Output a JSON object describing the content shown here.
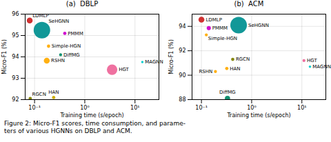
{
  "chart_data": [
    {
      "type": "scatter",
      "title": "(a)  DBLP",
      "labels": [
        "LDMLP",
        "SeHGNN",
        "PMMM",
        "Simple-HGN",
        "DiffMG",
        "RSHN",
        "HGT",
        "MAGNN",
        "RGCN",
        "HAN"
      ],
      "x": [
        0.08,
        0.14,
        0.4,
        0.19,
        0.33,
        0.175,
        3.5,
        14.0,
        0.082,
        0.24
      ],
      "values": [
        95.7,
        95.25,
        95.1,
        94.5,
        94.1,
        93.82,
        93.4,
        93.76,
        92.05,
        92.1
      ],
      "sizes": [
        70,
        550,
        22,
        22,
        18,
        70,
        220,
        12,
        22,
        22
      ],
      "colors": [
        "#cc2222",
        "#009090",
        "#cc00cc",
        "#ffaa00",
        "#008866",
        "#ffaa00",
        "#ee6699",
        "#00cccc",
        "#808000",
        "#ccaa00"
      ],
      "xlabel": "Training time (s/epoch)",
      "ylabel": "Micro-F1 (%)",
      "log": "x",
      "grid": true,
      "xlim": [
        0.065,
        30
      ],
      "xticks": [
        {
          "value": 0.1,
          "label": "10⁻¹"
        },
        {
          "value": 1,
          "label": "10⁰"
        },
        {
          "value": 10,
          "label": "10¹"
        }
      ],
      "ylim": [
        92.0,
        96.0
      ],
      "yticks": [
        92,
        93,
        94,
        95,
        96
      ]
    },
    {
      "type": "scatter",
      "title": "(b)  ACM",
      "labels": [
        "LDMLP",
        "SeHGNN",
        "PMMM",
        "Simple-HGN",
        "RGCN",
        "HAN",
        "RSHN",
        "DiffMG",
        "HGT",
        "MAGNN"
      ],
      "x": [
        0.1,
        0.55,
        0.14,
        0.125,
        0.42,
        0.32,
        0.19,
        0.33,
        11.0,
        14.5
      ],
      "values": [
        94.55,
        94.1,
        93.85,
        93.3,
        91.3,
        90.55,
        90.3,
        88.1,
        91.2,
        90.7
      ],
      "sizes": [
        70,
        550,
        35,
        18,
        22,
        22,
        18,
        55,
        18,
        12
      ],
      "colors": [
        "#cc2222",
        "#009090",
        "#cc00cc",
        "#ffaa00",
        "#808000",
        "#ffaa00",
        "#ffaa00",
        "#008866",
        "#ee6699",
        "#00cccc"
      ],
      "xlabel": "Training time (s/epoch)",
      "ylabel": "Micro-F1 (%)",
      "log": "x",
      "grid": true,
      "xlim": [
        0.065,
        30
      ],
      "xticks": [
        {
          "value": 0.1,
          "label": "10⁻¹"
        },
        {
          "value": 1,
          "label": "10⁰"
        },
        {
          "value": 10,
          "label": "10¹"
        }
      ],
      "ylim": [
        88.0,
        95.0
      ],
      "yticks": [
        88,
        90,
        92,
        94
      ]
    }
  ],
  "caption": "Figure 2: Micro-F1 scores, time consumption, and parame-\nters of various HGNNs on DBLP and ACM."
}
